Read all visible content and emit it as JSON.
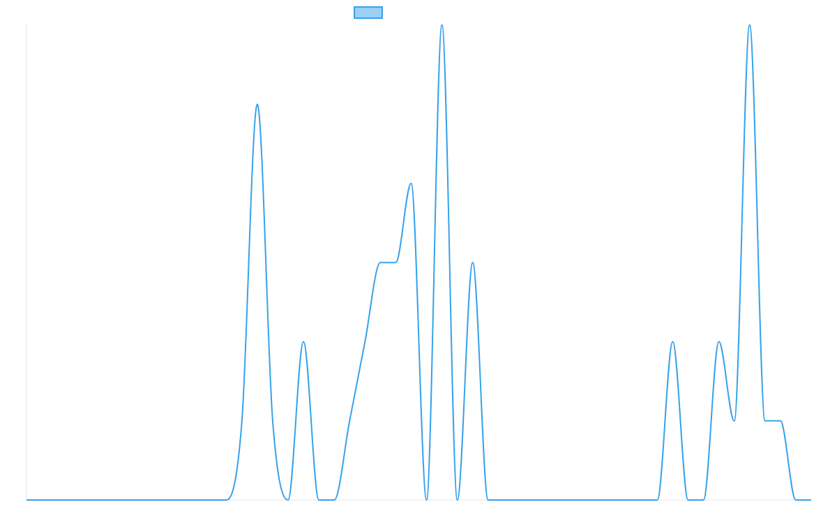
{
  "chart_data": {
    "type": "line",
    "title": "",
    "xlabel": "",
    "ylabel": "",
    "legend": {
      "position": "top-center",
      "swatch_fill": "#9AD0F5",
      "swatch_stroke": "#36A2EB",
      "label": ""
    },
    "series": [
      {
        "color": "#36A2EB",
        "x": [
          0,
          1,
          2,
          3,
          4,
          5,
          6,
          7,
          8,
          9,
          10,
          11,
          12,
          13,
          14,
          15,
          16,
          17,
          18,
          19,
          20,
          21,
          22,
          23,
          24,
          25,
          26,
          27,
          28,
          29,
          30,
          31,
          32,
          33,
          34,
          35,
          36,
          37,
          38,
          39,
          40,
          41,
          42,
          43,
          44,
          45,
          46,
          47,
          48,
          49,
          50,
          51
        ],
        "values": [
          0,
          0,
          0,
          0,
          0,
          0,
          0,
          0,
          0,
          0,
          0,
          0,
          0,
          0,
          1,
          5,
          1,
          0,
          2,
          0,
          0,
          1,
          2,
          3,
          3,
          4,
          0,
          6,
          0,
          3,
          0,
          0,
          0,
          0,
          0,
          0,
          0,
          0,
          0,
          0,
          0,
          0,
          2,
          0,
          0,
          2,
          1,
          6,
          1,
          1,
          0,
          0
        ]
      }
    ],
    "ylim": [
      0,
      6
    ],
    "grid": false
  }
}
